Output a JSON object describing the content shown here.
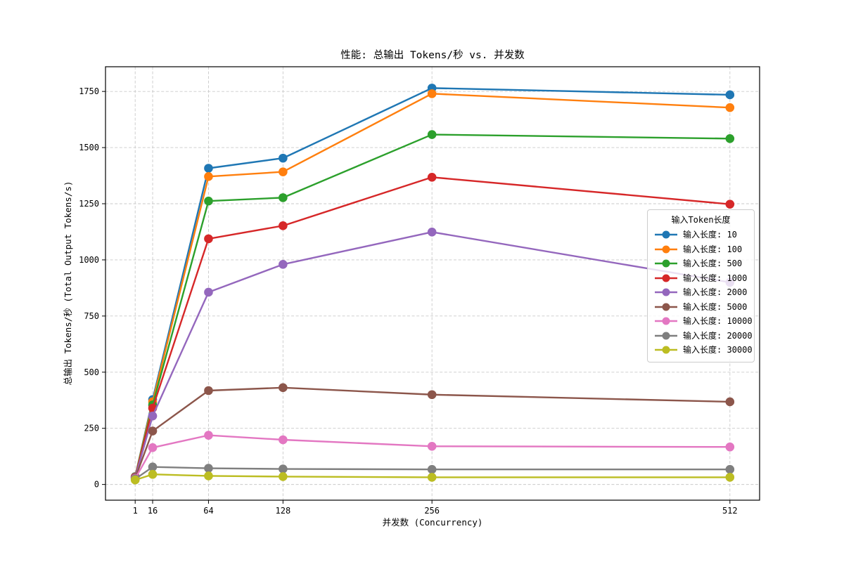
{
  "figure": {
    "title": "性能: 总输出 Tokens/秒 vs. 并发数",
    "xlabel": "并发数 (Concurrency)",
    "ylabel": "总输出 Tokens/秒 (Total Output Tokens/s)"
  },
  "chart_data": {
    "type": "line",
    "title": "性能: 总输出 Tokens/秒 vs. 并发数",
    "xlabel": "并发数 (Concurrency)",
    "ylabel": "总输出 Tokens/秒 (Total Output Tokens/s)",
    "x": [
      1,
      16,
      64,
      128,
      256,
      512
    ],
    "xtick_labels": [
      "1",
      "16",
      "64",
      "128",
      "256",
      "512"
    ],
    "yticks": [
      0,
      250,
      500,
      750,
      1000,
      1250,
      1500,
      1750
    ],
    "xlim": [
      -24.5,
      537.5
    ],
    "ylim": [
      -70,
      1860
    ],
    "grid": true,
    "grid_style": "dashed",
    "legend_title": "输入Token长度",
    "legend_position": "center-right",
    "series": [
      {
        "name": "输入长度: 10",
        "color": "#1f77b4",
        "values": [
          35,
          378,
          1408,
          1453,
          1765,
          1735
        ]
      },
      {
        "name": "输入长度: 100",
        "color": "#ff7f0e",
        "values": [
          34,
          368,
          1371,
          1392,
          1740,
          1678
        ]
      },
      {
        "name": "输入长度: 500",
        "color": "#2ca02c",
        "values": [
          33,
          354,
          1262,
          1277,
          1558,
          1540
        ]
      },
      {
        "name": "输入长度: 1000",
        "color": "#d62728",
        "values": [
          32,
          340,
          1094,
          1152,
          1368,
          1248
        ]
      },
      {
        "name": "输入长度: 2000",
        "color": "#9467bd",
        "values": [
          30,
          305,
          856,
          980,
          1124,
          900
        ]
      },
      {
        "name": "输入长度: 5000",
        "color": "#8c564b",
        "values": [
          28,
          238,
          418,
          431,
          400,
          368
        ]
      },
      {
        "name": "输入长度: 10000",
        "color": "#e377c2",
        "values": [
          26,
          164,
          219,
          199,
          170,
          167
        ]
      },
      {
        "name": "输入长度: 20000",
        "color": "#7f7f7f",
        "values": [
          24,
          78,
          72,
          69,
          67,
          67
        ]
      },
      {
        "name": "输入长度: 30000",
        "color": "#bcbd22",
        "values": [
          20,
          45,
          38,
          35,
          32,
          32
        ]
      }
    ],
    "colors": {
      "grid": "#c9c9c9",
      "spine": "#000000",
      "background": "#ffffff"
    }
  }
}
